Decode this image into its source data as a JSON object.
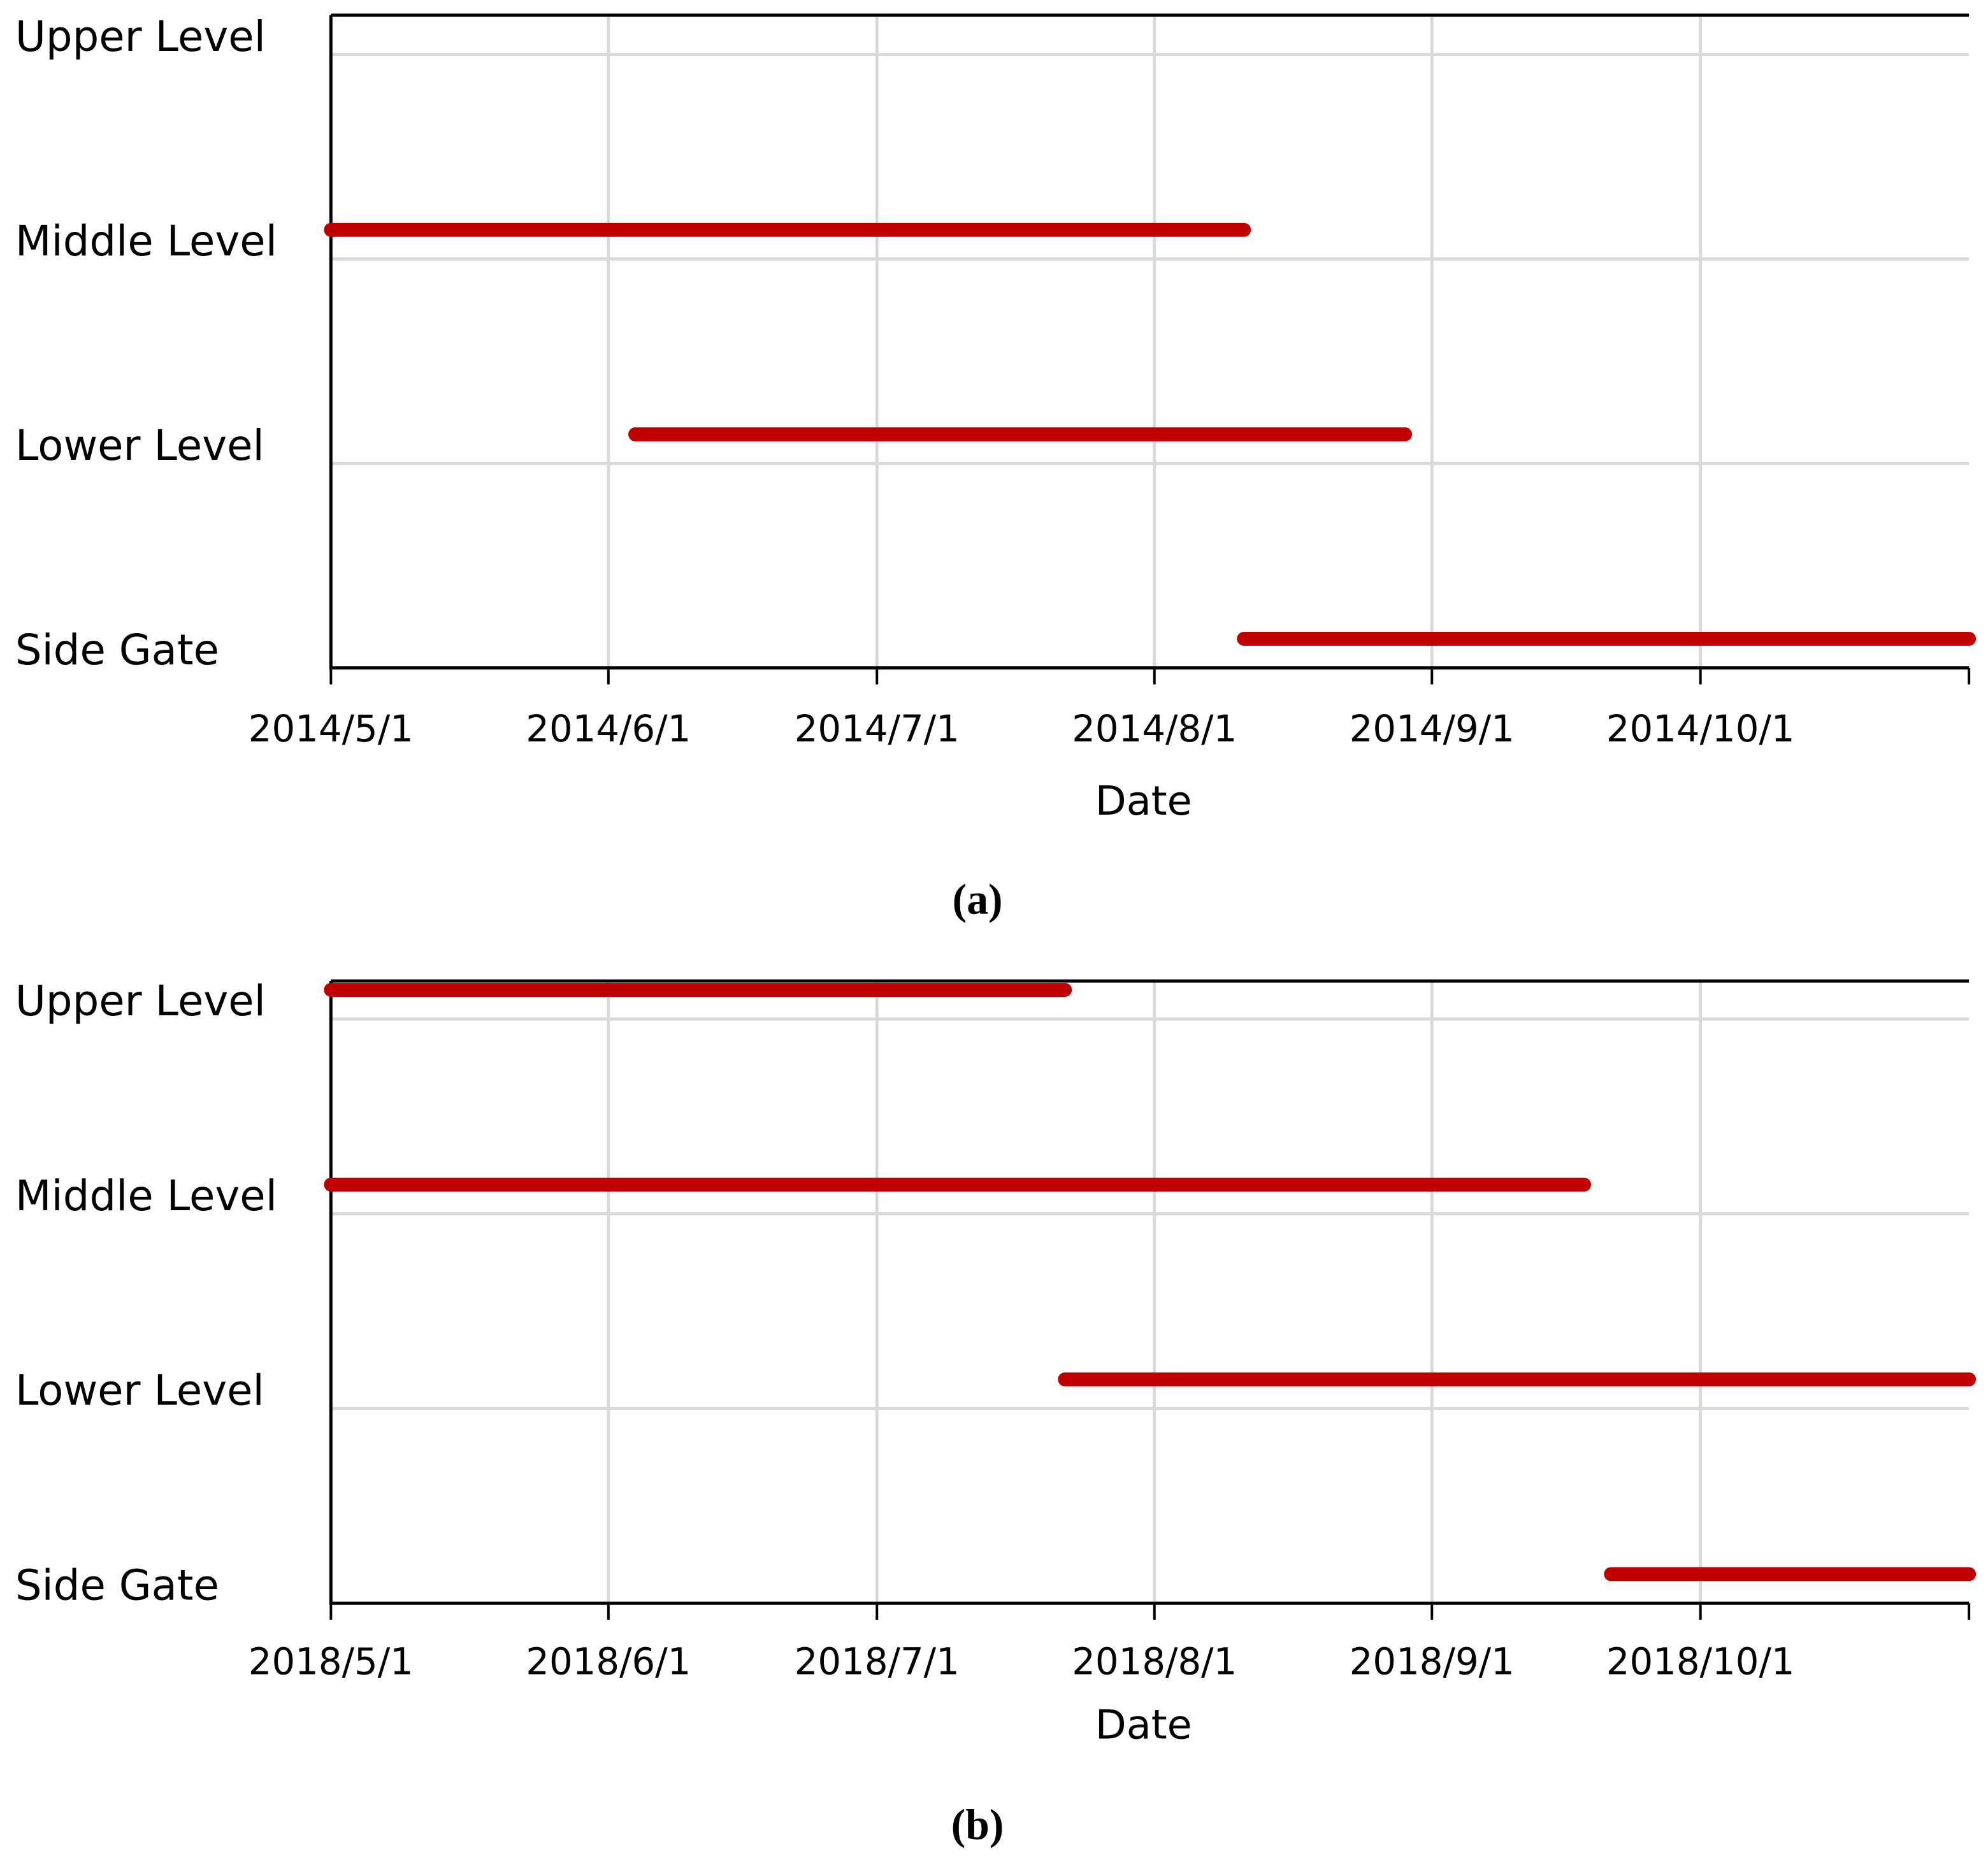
{
  "chart_data": [
    {
      "type": "range_bar",
      "caption": "(a)",
      "xlabel": "Date",
      "categories": [
        "Upper Level",
        "Middle Level",
        "Lower Level",
        "Side Gate"
      ],
      "starts": [
        null,
        "2014-05-01",
        "2014-06-04",
        "2014-08-11"
      ],
      "ends": [
        null,
        "2014-08-11",
        "2014-08-29",
        "2014-10-31"
      ],
      "color": "#c00000",
      "grid": true,
      "xlim": [
        "2014-05-01",
        "2014-10-31"
      ],
      "xticks": [
        {
          "value": "2014-05-01",
          "label": "2014/5/1"
        },
        {
          "value": "2014-06-01",
          "label": "2014/6/1"
        },
        {
          "value": "2014-07-01",
          "label": "2014/7/1"
        },
        {
          "value": "2014-08-01",
          "label": "2014/8/1"
        },
        {
          "value": "2014-09-01",
          "label": "2014/9/1"
        },
        {
          "value": "2014-10-01",
          "label": "2014/10/1"
        }
      ]
    },
    {
      "type": "range_bar",
      "caption": "(b)",
      "xlabel": "Date",
      "categories": [
        "Upper Level",
        "Middle Level",
        "Lower Level",
        "Side Gate"
      ],
      "starts": [
        "2018-05-01",
        "2018-05-01",
        "2018-07-22",
        "2018-09-21"
      ],
      "ends": [
        "2018-07-22",
        "2018-09-18",
        "2018-10-31",
        "2018-10-31"
      ],
      "color": "#c00000",
      "grid": true,
      "xlim": [
        "2018-05-01",
        "2018-10-31"
      ],
      "xticks": [
        {
          "value": "2018-05-01",
          "label": "2018/5/1"
        },
        {
          "value": "2018-06-01",
          "label": "2018/6/1"
        },
        {
          "value": "2018-07-01",
          "label": "2018/7/1"
        },
        {
          "value": "2018-08-01",
          "label": "2018/8/1"
        },
        {
          "value": "2018-09-01",
          "label": "2018/9/1"
        },
        {
          "value": "2018-10-01",
          "label": "2018/10/1"
        }
      ]
    }
  ]
}
